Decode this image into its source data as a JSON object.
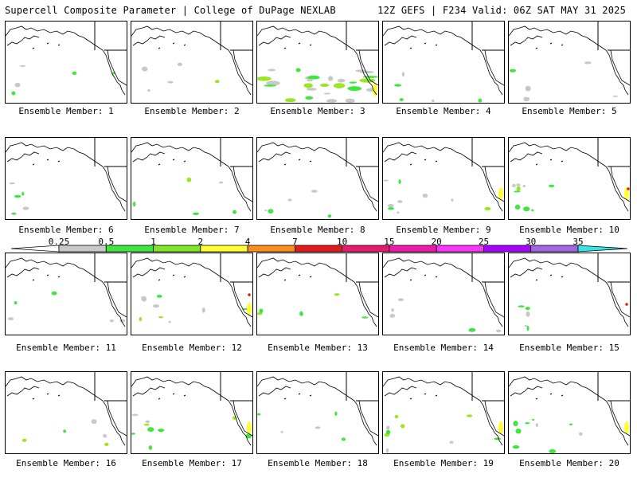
{
  "header": {
    "title_left": "Supercell Composite Parameter | College of DuPage NEXLAB",
    "title_right": "12Z GEFS | F234 Valid: 06Z SAT MAY 31 2025"
  },
  "panels": [
    {
      "caption": "Ensemble Member: 1",
      "activity": "low"
    },
    {
      "caption": "Ensemble Member: 2",
      "activity": "low"
    },
    {
      "caption": "Ensemble Member: 3",
      "activity": "high"
    },
    {
      "caption": "Ensemble Member: 4",
      "activity": "low"
    },
    {
      "caption": "Ensemble Member: 5",
      "activity": "low"
    },
    {
      "caption": "Ensemble Member: 6",
      "activity": "low"
    },
    {
      "caption": "Ensemble Member: 7",
      "activity": "low"
    },
    {
      "caption": "Ensemble Member: 8",
      "activity": "low"
    },
    {
      "caption": "Ensemble Member: 9",
      "activity": "medium"
    },
    {
      "caption": "Ensemble Member: 10",
      "activity": "medium"
    },
    {
      "caption": "Ensemble Member: 11",
      "activity": "low"
    },
    {
      "caption": "Ensemble Member: 12",
      "activity": "medium"
    },
    {
      "caption": "Ensemble Member: 13",
      "activity": "low"
    },
    {
      "caption": "Ensemble Member: 14",
      "activity": "low"
    },
    {
      "caption": "Ensemble Member: 15",
      "activity": "low"
    },
    {
      "caption": "Ensemble Member: 16",
      "activity": "low"
    },
    {
      "caption": "Ensemble Member: 17",
      "activity": "medium"
    },
    {
      "caption": "Ensemble Member: 18",
      "activity": "low"
    },
    {
      "caption": "Ensemble Member: 19",
      "activity": "medium"
    },
    {
      "caption": "Ensemble Member: 20",
      "activity": "medium"
    }
  ],
  "colorbar": {
    "labels": [
      "0.25",
      "0.5",
      "1",
      "2",
      "4",
      "7",
      "10",
      "15",
      "20",
      "25",
      "30",
      "35"
    ],
    "colors": [
      "#c8c8c8",
      "#3ee63e",
      "#7ee623",
      "#ffff33",
      "#ff8c1a",
      "#e61a1a",
      "#e61a6e",
      "#f01aaa",
      "#ff33ff",
      "#aa00ff",
      "#a066e6",
      "#33e6e6"
    ]
  },
  "map_colors": {
    "gray": "#c8c8c8",
    "green": "#3ee63e",
    "lime": "#9be623",
    "yellow": "#ffff33",
    "orange": "#ff8c1a",
    "red": "#e61a1a"
  }
}
